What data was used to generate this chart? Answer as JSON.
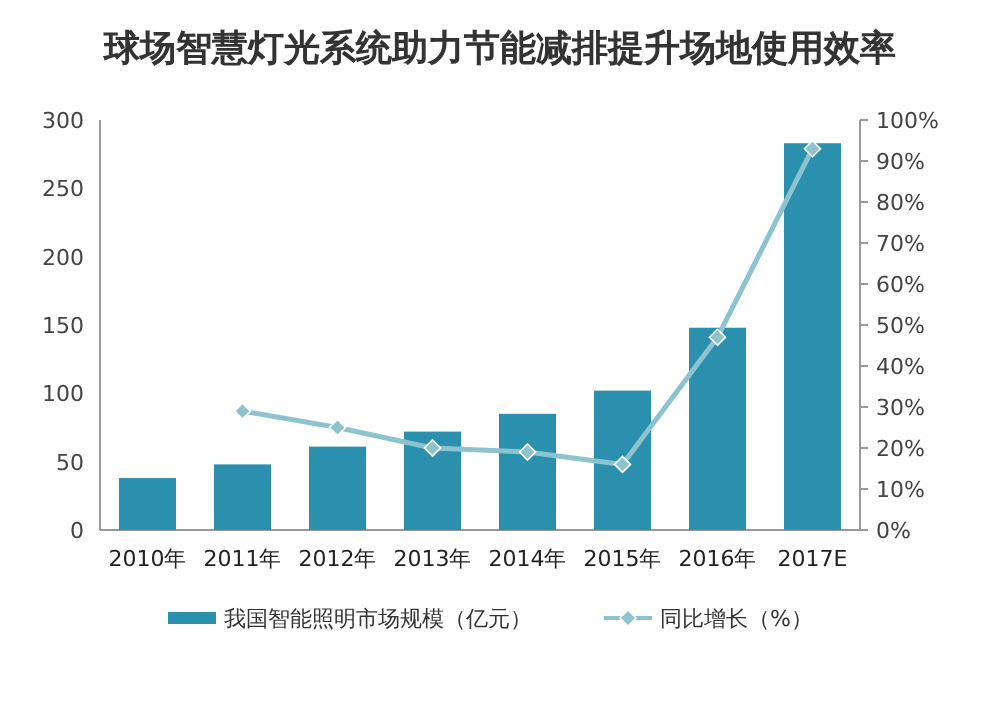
{
  "chart_data": {
    "type": "bar",
    "title": "球场智慧灯光系统助力节能减排提升场地使用效率",
    "categories": [
      "2010年",
      "2011年",
      "2012年",
      "2013年",
      "2014年",
      "2015年",
      "2016年",
      "2017E"
    ],
    "series": [
      {
        "name": "我国智能照明市场规模（亿元）",
        "color": "#2b8fae",
        "values": [
          38,
          48,
          61,
          72,
          85,
          102,
          148,
          283
        ]
      },
      {
        "name": "同比增长（%）",
        "type": "line",
        "axis": "y2",
        "color": "#8cc3cf",
        "marker": "diamond",
        "values": [
          null,
          29,
          25,
          20,
          19,
          16,
          47,
          93
        ]
      }
    ],
    "ylim": [
      0,
      300
    ],
    "yticks": [
      0,
      50,
      100,
      150,
      200,
      250,
      300
    ],
    "y2lim": [
      0,
      100
    ],
    "y2ticks": [
      {
        "value": 0,
        "label": "0%"
      },
      {
        "value": 10,
        "label": "10%"
      },
      {
        "value": 20,
        "label": "20%"
      },
      {
        "value": 30,
        "label": "30%"
      },
      {
        "value": 40,
        "label": "40%"
      },
      {
        "value": 50,
        "label": "50%"
      },
      {
        "value": 60,
        "label": "60%"
      },
      {
        "value": 70,
        "label": "70%"
      },
      {
        "value": 80,
        "label": "80%"
      },
      {
        "value": 90,
        "label": "90%"
      },
      {
        "value": 100,
        "label": "100%"
      }
    ],
    "legend": "bottom",
    "grid": false
  }
}
